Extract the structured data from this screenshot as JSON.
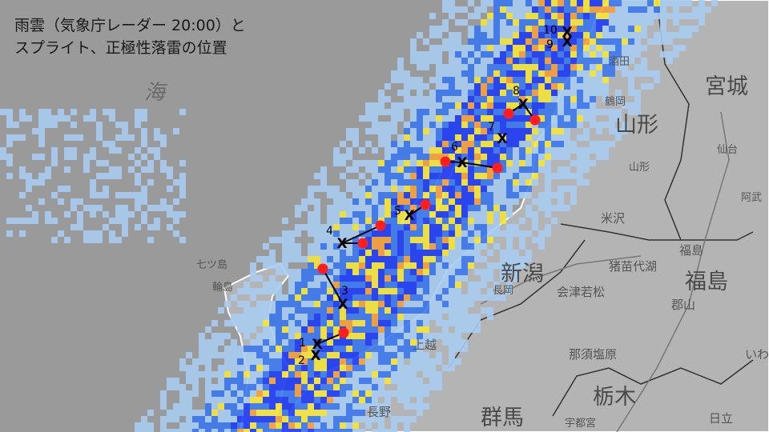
{
  "title": {
    "line1": "雨雲（気象庁レーダー 20:00）と",
    "line2": "スプライト、正極性落雷の位置"
  },
  "sea_label": "海",
  "places": [
    {
      "name": "酒田",
      "size": "sm"
    },
    {
      "name": "宮城",
      "size": "big"
    },
    {
      "name": "鶴岡",
      "size": "sm"
    },
    {
      "name": "山形",
      "size": "big"
    },
    {
      "name": "仙台",
      "size": "sm"
    },
    {
      "name": "山形",
      "size": "sm"
    },
    {
      "name": "米沢",
      "size": "mid"
    },
    {
      "name": "阿武",
      "size": "sm"
    },
    {
      "name": "福島",
      "size": "mid"
    },
    {
      "name": "福島",
      "size": "big"
    },
    {
      "name": "七ツ島",
      "size": "sm"
    },
    {
      "name": "輪島",
      "size": "sm"
    },
    {
      "name": "新潟",
      "size": "big"
    },
    {
      "name": "長岡",
      "size": "sm"
    },
    {
      "name": "会津若松",
      "size": "mid"
    },
    {
      "name": "猪苗代湖",
      "size": "mid"
    },
    {
      "name": "郡山",
      "size": "mid"
    },
    {
      "name": "上越",
      "size": "mid"
    },
    {
      "name": "那須塩原",
      "size": "mid"
    },
    {
      "name": "いわき",
      "size": "mid"
    },
    {
      "name": "栃木",
      "size": "big"
    },
    {
      "name": "長野",
      "size": "mid"
    },
    {
      "name": "群馬",
      "size": "big"
    },
    {
      "name": "宇都宮",
      "size": "sm"
    },
    {
      "name": "日立",
      "size": "mid"
    }
  ],
  "sprites": [
    "1",
    "2",
    "3",
    "4",
    "5",
    "6",
    "7",
    "8",
    "9",
    "10"
  ],
  "legend_symbols": {
    "sprite": "X",
    "positive_lightning": "red-dot"
  },
  "colors": {
    "sea": "#9a9a9a",
    "land": "#b4b4b4",
    "rain_light": "#a8ccf2",
    "rain_mid": "#3c78f0",
    "rain_heavy": "#1e3cf5",
    "rain_strong": "#f5e63c",
    "rain_intense": "#f5a03c",
    "lightning": "#ff1e1e"
  }
}
